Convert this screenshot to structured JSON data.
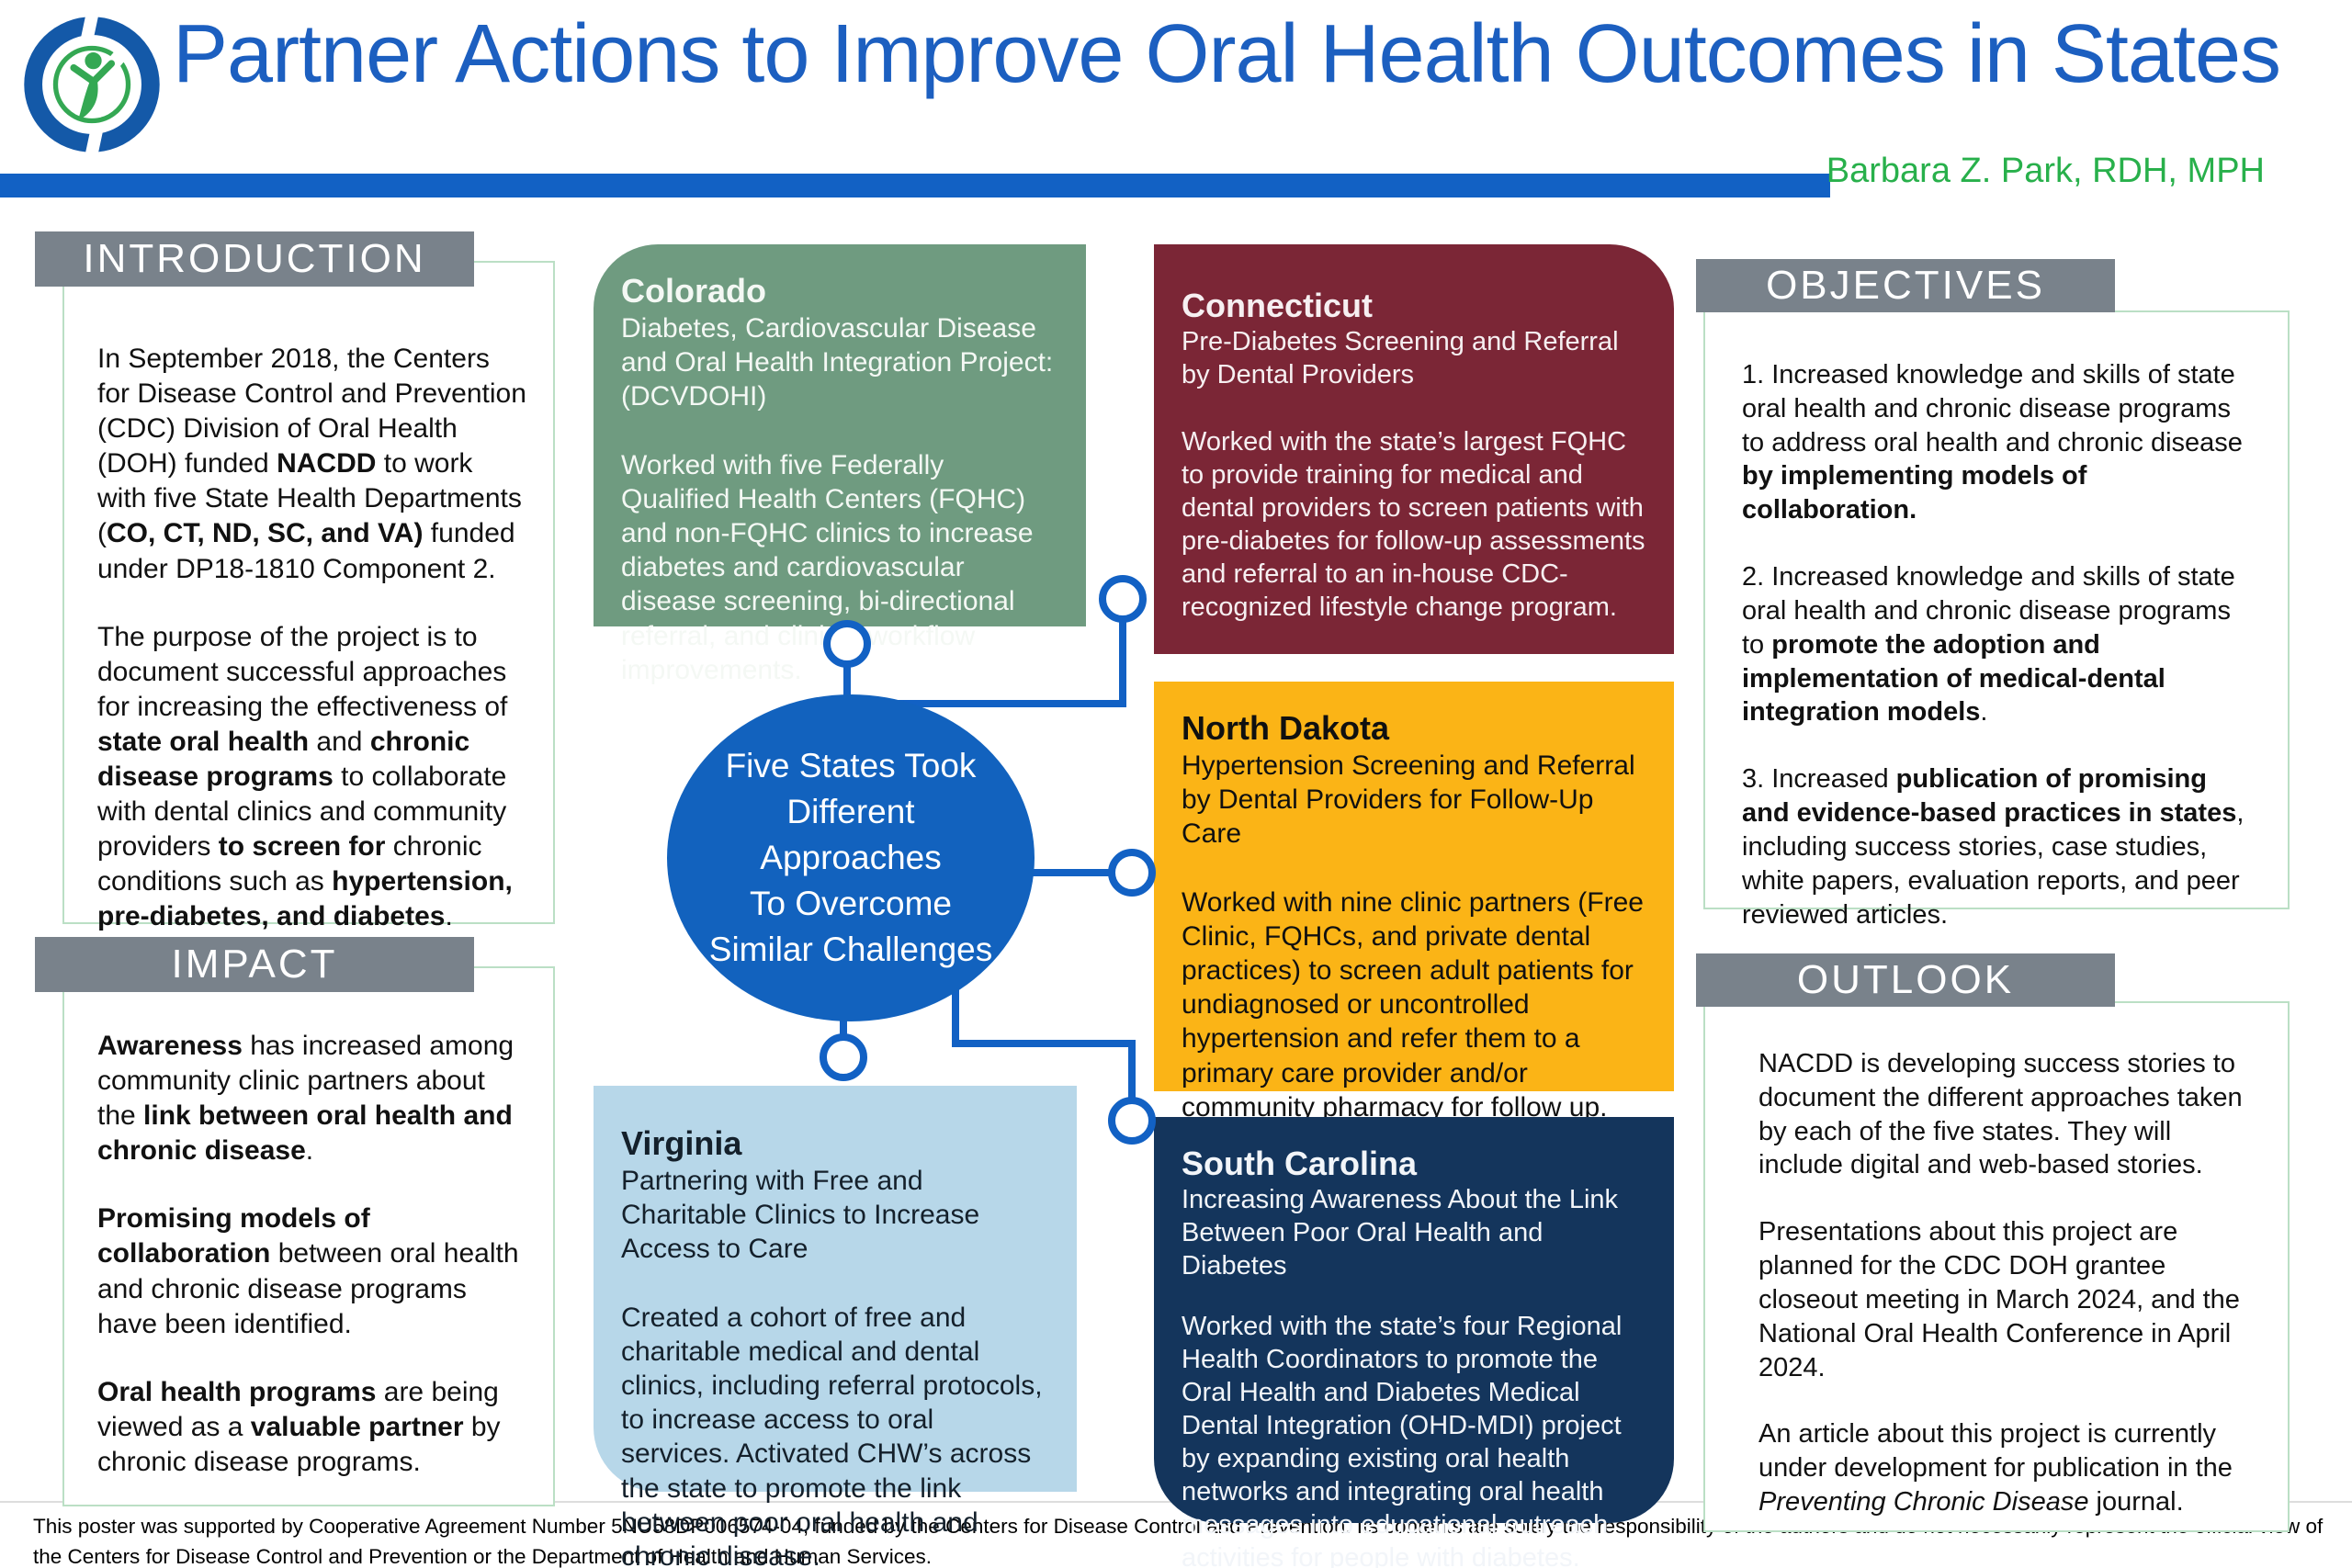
{
  "header": {
    "title": "Partner Actions to Improve Oral Health Outcomes in States",
    "author": "Barbara Z. Park, RDH, MPH",
    "logo": "nacdd-logo"
  },
  "colors": {
    "title_blue": "#1C5FC0",
    "accent_bar_blue": "#1261C4",
    "author_green": "#28B04B",
    "section_header_gray": "#79828B",
    "section_border_green": "#BBDFC5",
    "colorado_green": "#6F9B80",
    "connecticut_maroon": "#7B2636",
    "north_dakota_yellow": "#FBB416",
    "south_carolina_navy": "#14355C",
    "virginia_light_blue": "#B7D7E9",
    "circle_blue": "#1262BE"
  },
  "sections": {
    "introduction": {
      "heading": "INTRODUCTION",
      "paragraphs": [
        [
          {
            "t": "In September 2018, the Centers for Disease Control and Prevention (CDC) Division of Oral Health (DOH) funded "
          },
          {
            "t": "NACDD",
            "b": true
          },
          {
            "t": " to work with five State Health Departments ("
          },
          {
            "t": "CO, CT, ND, SC, and VA)",
            "b": true
          },
          {
            "t": " funded under DP18-1810 Component 2."
          }
        ],
        [
          {
            "t": "The purpose of the project is to document successful approaches for increasing the effectiveness of "
          },
          {
            "t": "state oral health",
            "b": true
          },
          {
            "t": " and "
          },
          {
            "t": "chronic disease programs",
            "b": true
          },
          {
            "t": " to collaborate with dental clinics and community providers "
          },
          {
            "t": "to screen for",
            "b": true
          },
          {
            "t": " chronic conditions such as "
          },
          {
            "t": "hypertension, pre-diabetes, and diabetes",
            "b": true
          },
          {
            "t": "."
          }
        ]
      ]
    },
    "impact": {
      "heading": "IMPACT",
      "paragraphs": [
        [
          {
            "t": "Awareness",
            "b": true
          },
          {
            "t": " has increased among community clinic partners about the "
          },
          {
            "t": "link between oral health and chronic disease",
            "b": true
          },
          {
            "t": "."
          }
        ],
        [
          {
            "t": "Promising models of collaboration",
            "b": true
          },
          {
            "t": " between oral health and chronic disease programs have been identified."
          }
        ],
        [
          {
            "t": "Oral health programs",
            "b": true
          },
          {
            "t": " are being viewed as a "
          },
          {
            "t": "valuable partner",
            "b": true
          },
          {
            "t": " by chronic disease programs."
          }
        ]
      ]
    },
    "objectives": {
      "heading": "OBJECTIVES",
      "paragraphs": [
        [
          {
            "t": "1. Increased knowledge and skills of state oral health and chronic disease programs to address oral health and chronic disease "
          },
          {
            "t": "by implementing models of collaboration.",
            "b": true
          }
        ],
        [
          {
            "t": "2. Increased knowledge and skills of state oral health and chronic disease programs to "
          },
          {
            "t": "promote the adoption and implementation of medical-dental integration models",
            "b": true
          },
          {
            "t": "."
          }
        ],
        [
          {
            "t": "3. Increased "
          },
          {
            "t": "publication of promising and evidence-based practices in states",
            "b": true
          },
          {
            "t": ", including success stories, case studies, white papers, evaluation reports, and peer reviewed articles."
          }
        ]
      ]
    },
    "outlook": {
      "heading": "OUTLOOK",
      "paragraphs": [
        [
          {
            "t": "NACDD is developing success stories to document the different approaches taken by each of the five states. They will include digital and web-based stories."
          }
        ],
        [
          {
            "t": "Presentations about this project are planned for the CDC DOH grantee closeout meeting in March 2024, and the National Oral Health Conference in April 2024."
          }
        ],
        [
          {
            "t": "An article about this project is currently under development for publication in the "
          },
          {
            "t": "Preventing Chronic Disease",
            "i": true
          },
          {
            "t": " journal."
          }
        ]
      ]
    }
  },
  "states": {
    "colorado": {
      "name": "Colorado",
      "subtitle": "Diabetes, Cardiovascular Disease and Oral Health Integration Project: (DCVDOHI)",
      "body": "Worked with five Federally Qualified Health Centers (FQHC) and non-FQHC clinics to increase diabetes and cardiovascular disease screening, bi-directional referral, and clinical workflow improvements."
    },
    "connecticut": {
      "name": "Connecticut",
      "subtitle": "Pre-Diabetes Screening and Referral by Dental Providers",
      "body": "Worked with the state’s largest FQHC to provide training for medical and dental providers to screen patients with pre-diabetes for follow-up assessments and referral to an in-house CDC-recognized lifestyle change program."
    },
    "north_dakota": {
      "name": "North Dakota",
      "subtitle": "Hypertension Screening and Referral by Dental Providers for Follow-Up Care",
      "body": "Worked with nine clinic partners (Free Clinic, FQHCs, and private dental practices) to screen adult patients for undiagnosed or uncontrolled hypertension and refer them to a primary care provider and/or community pharmacy for follow up."
    },
    "south_carolina": {
      "name": "South Carolina",
      "subtitle": "Increasing Awareness About the Link Between Poor Oral Health and Diabetes",
      "body": "Worked with the state’s four Regional Health Coordinators to promote the Oral Health and Diabetes Medical Dental Integration (OHD-MDI) project by expanding existing oral health networks and integrating oral health messages into educational outreach activities for people with diabetes."
    },
    "virginia": {
      "name": "Virginia",
      "subtitle": "Partnering with Free and Charitable Clinics to Increase Access to Care",
      "body": "Created a cohort of free and charitable medical and dental clinics, including referral protocols, to increase access to oral services. Activated CHW’s across the state to promote the link between poor oral health and chronic disease."
    }
  },
  "center_circle": {
    "lines": [
      "Five States Took",
      "Different",
      "Approaches",
      "To Overcome",
      "Similar Challenges"
    ]
  },
  "footer": {
    "text": "This poster was supported by Cooperative Agreement Number 5NU58DP006574-04, funded by the Centers for Disease Control and Prevention. Its contents are solely the responsibility of the authors and do not necessarily represent the official view of the Centers for Disease Control and Prevention or the Department of Health and Human Services."
  }
}
